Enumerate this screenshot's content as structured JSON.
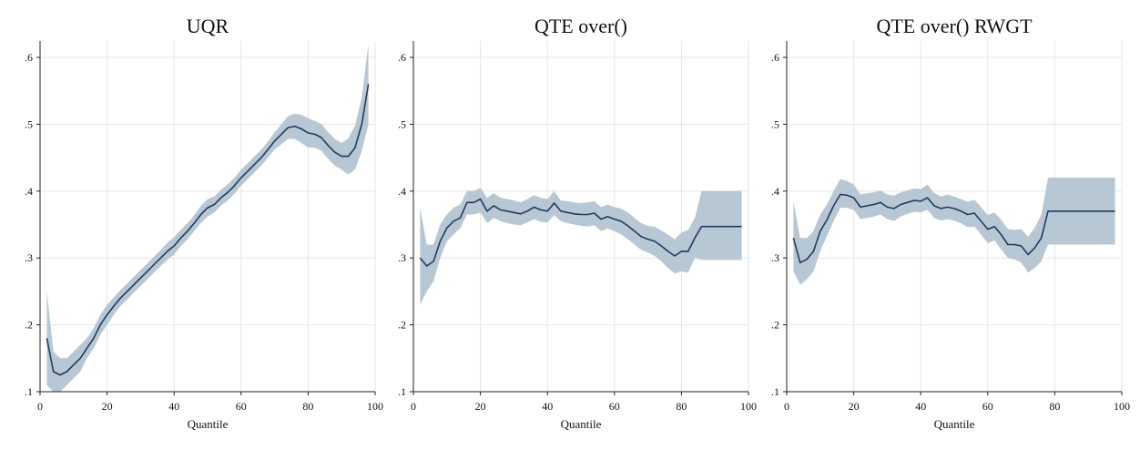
{
  "colors": {
    "line": "#1f3c5c",
    "band": "#b8c7d4",
    "grid": "#e6e6e6"
  },
  "chart_data": [
    {
      "type": "line",
      "title": "UQR",
      "xlabel": "Quantile",
      "ylabel": "",
      "xlim": [
        0,
        100
      ],
      "ylim": [
        0.1,
        0.6
      ],
      "xticks": [
        0,
        20,
        40,
        60,
        80,
        100
      ],
      "xtick_labels": [
        "0",
        "20",
        "40",
        "60",
        "80",
        "100"
      ],
      "yticks": [
        0.1,
        0.2,
        0.3,
        0.4,
        0.5,
        0.6
      ],
      "ytick_labels": [
        ".1",
        ".2",
        ".3",
        ".4",
        ".5",
        ".6"
      ],
      "grid": true,
      "x": [
        2,
        4,
        6,
        8,
        10,
        12,
        14,
        16,
        18,
        20,
        22,
        24,
        26,
        28,
        30,
        32,
        34,
        36,
        38,
        40,
        42,
        44,
        46,
        48,
        50,
        52,
        54,
        56,
        58,
        60,
        62,
        64,
        66,
        68,
        70,
        72,
        74,
        76,
        78,
        80,
        82,
        84,
        86,
        88,
        90,
        92,
        94,
        96,
        98
      ],
      "series": [
        {
          "values": [
            0.18,
            0.13,
            0.125,
            0.13,
            0.14,
            0.15,
            0.165,
            0.18,
            0.2,
            0.215,
            0.228,
            0.24,
            0.25,
            0.26,
            0.27,
            0.28,
            0.29,
            0.3,
            0.31,
            0.318,
            0.33,
            0.34,
            0.352,
            0.365,
            0.375,
            0.38,
            0.39,
            0.398,
            0.408,
            0.42,
            0.43,
            0.44,
            0.45,
            0.462,
            0.475,
            0.485,
            0.495,
            0.497,
            0.493,
            0.487,
            0.485,
            0.48,
            0.468,
            0.458,
            0.452,
            0.452,
            0.465,
            0.5,
            0.56
          ],
          "lower": [
            0.11,
            0.1,
            0.1,
            0.11,
            0.12,
            0.13,
            0.15,
            0.165,
            0.185,
            0.2,
            0.215,
            0.228,
            0.238,
            0.248,
            0.258,
            0.268,
            0.278,
            0.288,
            0.297,
            0.305,
            0.318,
            0.328,
            0.34,
            0.352,
            0.362,
            0.368,
            0.378,
            0.386,
            0.396,
            0.408,
            0.418,
            0.428,
            0.438,
            0.45,
            0.462,
            0.47,
            0.478,
            0.478,
            0.472,
            0.465,
            0.465,
            0.46,
            0.448,
            0.438,
            0.432,
            0.425,
            0.432,
            0.46,
            0.5
          ],
          "upper": [
            0.25,
            0.16,
            0.15,
            0.15,
            0.16,
            0.17,
            0.18,
            0.195,
            0.215,
            0.23,
            0.241,
            0.252,
            0.262,
            0.272,
            0.282,
            0.292,
            0.302,
            0.312,
            0.323,
            0.331,
            0.342,
            0.352,
            0.364,
            0.378,
            0.388,
            0.392,
            0.402,
            0.41,
            0.42,
            0.432,
            0.442,
            0.452,
            0.462,
            0.474,
            0.488,
            0.5,
            0.512,
            0.516,
            0.514,
            0.509,
            0.505,
            0.5,
            0.488,
            0.478,
            0.472,
            0.479,
            0.498,
            0.54,
            0.62
          ]
        }
      ]
    },
    {
      "type": "line",
      "title": "QTE over()",
      "xlabel": "Quantile",
      "ylabel": "",
      "xlim": [
        0,
        100
      ],
      "ylim": [
        0.1,
        0.6
      ],
      "xticks": [
        0,
        20,
        40,
        60,
        80,
        100
      ],
      "xtick_labels": [
        "0",
        "20",
        "40",
        "60",
        "80",
        "100"
      ],
      "yticks": [
        0.1,
        0.2,
        0.3,
        0.4,
        0.5,
        0.6
      ],
      "ytick_labels": [
        ".1",
        ".2",
        ".3",
        ".4",
        ".5",
        ".6"
      ],
      "grid": true,
      "x": [
        2,
        4,
        6,
        8,
        10,
        12,
        14,
        16,
        18,
        20,
        22,
        24,
        26,
        28,
        30,
        32,
        34,
        36,
        38,
        40,
        42,
        44,
        46,
        48,
        50,
        52,
        54,
        56,
        58,
        60,
        62,
        64,
        66,
        68,
        70,
        72,
        74,
        76,
        78,
        80,
        82,
        84,
        86,
        88,
        90,
        92,
        94,
        96,
        98
      ],
      "series": [
        {
          "values": [
            0.3,
            0.288,
            0.295,
            0.325,
            0.345,
            0.355,
            0.36,
            0.383,
            0.383,
            0.388,
            0.37,
            0.378,
            0.372,
            0.37,
            0.368,
            0.366,
            0.37,
            0.376,
            0.372,
            0.37,
            0.382,
            0.37,
            0.368,
            0.366,
            0.365,
            0.365,
            0.367,
            0.358,
            0.362,
            0.358,
            0.355,
            0.348,
            0.34,
            0.332,
            0.328,
            0.325,
            0.318,
            0.31,
            0.303,
            0.31,
            0.31,
            0.33,
            0.347,
            0.347,
            0.347,
            0.347,
            0.347,
            0.347,
            0.347
          ],
          "lower": [
            0.23,
            0.25,
            0.265,
            0.3,
            0.325,
            0.335,
            0.345,
            0.365,
            0.365,
            0.368,
            0.352,
            0.36,
            0.355,
            0.352,
            0.35,
            0.349,
            0.353,
            0.358,
            0.354,
            0.353,
            0.364,
            0.355,
            0.352,
            0.35,
            0.348,
            0.347,
            0.349,
            0.34,
            0.344,
            0.34,
            0.335,
            0.328,
            0.32,
            0.312,
            0.308,
            0.303,
            0.295,
            0.285,
            0.277,
            0.28,
            0.278,
            0.3,
            0.297,
            0.297,
            0.297,
            0.297,
            0.297,
            0.297,
            0.297
          ],
          "upper": [
            0.375,
            0.32,
            0.32,
            0.35,
            0.365,
            0.375,
            0.38,
            0.4,
            0.4,
            0.405,
            0.39,
            0.397,
            0.39,
            0.388,
            0.386,
            0.383,
            0.388,
            0.394,
            0.39,
            0.388,
            0.4,
            0.386,
            0.385,
            0.383,
            0.382,
            0.383,
            0.385,
            0.376,
            0.38,
            0.376,
            0.374,
            0.368,
            0.36,
            0.352,
            0.348,
            0.347,
            0.341,
            0.335,
            0.328,
            0.338,
            0.342,
            0.36,
            0.4,
            0.4,
            0.4,
            0.4,
            0.4,
            0.4,
            0.4
          ]
        }
      ]
    },
    {
      "type": "line",
      "title": "QTE over() RWGT",
      "xlabel": "Quantile",
      "ylabel": "",
      "xlim": [
        0,
        100
      ],
      "ylim": [
        0.1,
        0.6
      ],
      "xticks": [
        0,
        20,
        40,
        60,
        80,
        100
      ],
      "xtick_labels": [
        "0",
        "20",
        "40",
        "60",
        "80",
        "100"
      ],
      "yticks": [
        0.1,
        0.2,
        0.3,
        0.4,
        0.5,
        0.6
      ],
      "ytick_labels": [
        ".1",
        ".2",
        ".3",
        ".4",
        ".5",
        ".6"
      ],
      "grid": true,
      "x": [
        2,
        4,
        6,
        8,
        10,
        12,
        14,
        16,
        18,
        20,
        22,
        24,
        26,
        28,
        30,
        32,
        34,
        36,
        38,
        40,
        42,
        44,
        46,
        48,
        50,
        52,
        54,
        56,
        58,
        60,
        62,
        64,
        66,
        68,
        70,
        72,
        74,
        76,
        78,
        80,
        82,
        84,
        86,
        88,
        90,
        92,
        94,
        96,
        98
      ],
      "series": [
        {
          "values": [
            0.33,
            0.293,
            0.298,
            0.31,
            0.34,
            0.357,
            0.378,
            0.395,
            0.394,
            0.39,
            0.376,
            0.378,
            0.38,
            0.383,
            0.376,
            0.374,
            0.38,
            0.383,
            0.386,
            0.385,
            0.39,
            0.378,
            0.374,
            0.376,
            0.374,
            0.37,
            0.365,
            0.367,
            0.355,
            0.343,
            0.347,
            0.335,
            0.32,
            0.32,
            0.318,
            0.305,
            0.315,
            0.33,
            0.37,
            0.37,
            0.37,
            0.37,
            0.37,
            0.37,
            0.37,
            0.37,
            0.37,
            0.37,
            0.37
          ],
          "lower": [
            0.28,
            0.26,
            0.268,
            0.28,
            0.31,
            0.333,
            0.355,
            0.375,
            0.375,
            0.372,
            0.358,
            0.36,
            0.362,
            0.365,
            0.358,
            0.355,
            0.362,
            0.366,
            0.369,
            0.368,
            0.372,
            0.36,
            0.356,
            0.358,
            0.356,
            0.352,
            0.346,
            0.347,
            0.335,
            0.322,
            0.326,
            0.313,
            0.3,
            0.298,
            0.293,
            0.278,
            0.285,
            0.295,
            0.32,
            0.32,
            0.32,
            0.32,
            0.32,
            0.32,
            0.32,
            0.32,
            0.32,
            0.32,
            0.32
          ],
          "upper": [
            0.385,
            0.33,
            0.33,
            0.34,
            0.365,
            0.38,
            0.4,
            0.418,
            0.415,
            0.41,
            0.395,
            0.397,
            0.398,
            0.401,
            0.395,
            0.393,
            0.398,
            0.401,
            0.404,
            0.403,
            0.41,
            0.397,
            0.392,
            0.395,
            0.392,
            0.388,
            0.384,
            0.387,
            0.376,
            0.364,
            0.368,
            0.357,
            0.343,
            0.342,
            0.343,
            0.332,
            0.345,
            0.365,
            0.42,
            0.42,
            0.42,
            0.42,
            0.42,
            0.42,
            0.42,
            0.42,
            0.42,
            0.42,
            0.42
          ]
        }
      ]
    }
  ]
}
